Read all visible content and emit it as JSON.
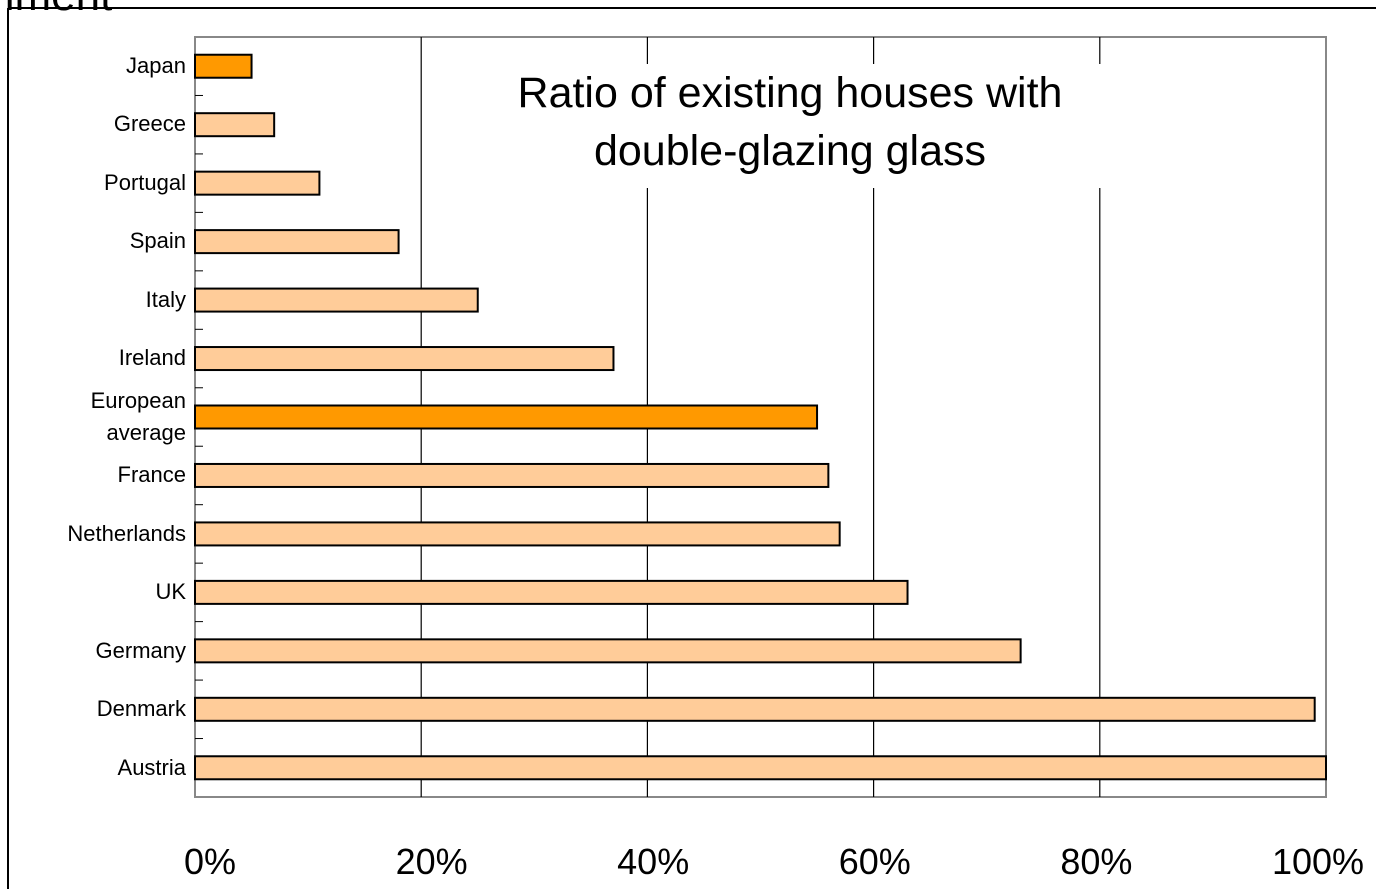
{
  "page_heading": "nment",
  "chart_data": {
    "type": "barh",
    "title": "Ratio of existing houses with double-glazing glass",
    "categories": [
      "Japan",
      "Greece",
      "Portugal",
      "Spain",
      "Italy",
      "Ireland",
      "European average",
      "France",
      "Netherlands",
      "UK",
      "Germany",
      "Denmark",
      "Austria"
    ],
    "values": [
      5,
      7,
      11,
      18,
      25,
      37,
      55,
      56,
      57,
      63,
      73,
      99,
      100
    ],
    "colors": [
      "#ff9900",
      "#ffcc99",
      "#ffcc99",
      "#ffcc99",
      "#ffcc99",
      "#ffcc99",
      "#ff9900",
      "#ffcc99",
      "#ffcc99",
      "#ffcc99",
      "#ffcc99",
      "#ffcc99",
      "#ffcc99"
    ],
    "xlim": [
      0,
      100
    ],
    "xticks": [
      {
        "value": 0,
        "label": "0%"
      },
      {
        "value": 20,
        "label": "20%"
      },
      {
        "value": 40,
        "label": "40%"
      },
      {
        "value": 60,
        "label": "60%"
      },
      {
        "value": 80,
        "label": "80%"
      },
      {
        "value": 100,
        "label": "100%"
      }
    ],
    "grid": true
  }
}
